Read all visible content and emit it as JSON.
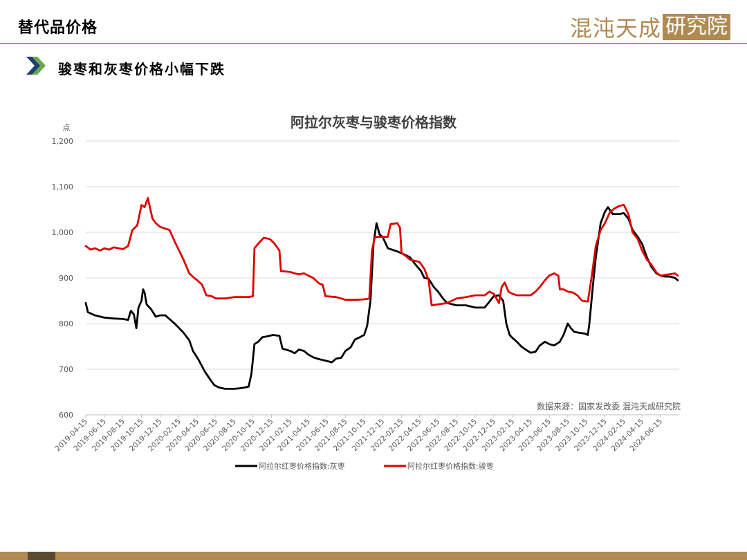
{
  "header": {
    "page_title": "替代品价格",
    "logo_text": "混沌天成",
    "logo_box_text": "研究院"
  },
  "section": {
    "title": "骏枣和灰枣价格小幅下跌",
    "icon": "double-chevron-right-icon"
  },
  "colors": {
    "accent": "#b08a52",
    "series_grey": "#000000",
    "series_red": "#e00000",
    "chevron_blue": "#1f3f6e",
    "chevron_green": "#6aa84f"
  },
  "chart_data": {
    "type": "line",
    "title": "阿拉尔灰枣与骏枣价格指数",
    "ylabel": "点",
    "ylim": [
      600,
      1200
    ],
    "yticks": [
      "600",
      "700",
      "800",
      "900",
      "1,000",
      "1,100",
      "1,200"
    ],
    "xlim": [
      "2019-04-15",
      "2024-08-15"
    ],
    "xticks": [
      "2019-04-15",
      "2019-06-15",
      "2019-08-15",
      "2019-10-15",
      "2019-12-15",
      "2020-02-15",
      "2020-04-15",
      "2020-06-15",
      "2020-08-15",
      "2020-10-15",
      "2020-12-15",
      "2021-02-15",
      "2021-04-15",
      "2021-06-15",
      "2021-08-15",
      "2021-10-15",
      "2021-12-15",
      "2022-02-15",
      "2022-04-15",
      "2022-06-15",
      "2022-08-15",
      "2022-10-15",
      "2022-12-15",
      "2023-02-15",
      "2023-04-15",
      "2023-06-15",
      "2023-08-15",
      "2023-10-15",
      "2023-12-15",
      "2024-02-15",
      "2024-04-15",
      "2024-06-15"
    ],
    "grid": true,
    "legend": "bottom",
    "source": "数据来源：国家发改委   混沌天成研究院",
    "series": [
      {
        "name": "阿拉尔红枣价格指数:灰枣",
        "color": "#000000",
        "points": [
          [
            "2019-04-15",
            845
          ],
          [
            "2019-04-22",
            825
          ],
          [
            "2019-05-15",
            818
          ],
          [
            "2019-06-15",
            813
          ],
          [
            "2019-07-15",
            811
          ],
          [
            "2019-08-15",
            810
          ],
          [
            "2019-09-01",
            808
          ],
          [
            "2019-09-10",
            828
          ],
          [
            "2019-09-20",
            820
          ],
          [
            "2019-09-28",
            790
          ],
          [
            "2019-10-05",
            835
          ],
          [
            "2019-10-15",
            850
          ],
          [
            "2019-10-20",
            875
          ],
          [
            "2019-10-25",
            868
          ],
          [
            "2019-11-01",
            842
          ],
          [
            "2019-11-15",
            832
          ],
          [
            "2019-12-01",
            815
          ],
          [
            "2019-12-15",
            818
          ],
          [
            "2020-01-01",
            818
          ],
          [
            "2020-02-01",
            800
          ],
          [
            "2020-03-01",
            780
          ],
          [
            "2020-03-20",
            763
          ],
          [
            "2020-04-01",
            740
          ],
          [
            "2020-04-20",
            720
          ],
          [
            "2020-05-10",
            695
          ],
          [
            "2020-05-25",
            680
          ],
          [
            "2020-06-10",
            665
          ],
          [
            "2020-06-25",
            660
          ],
          [
            "2020-07-15",
            657
          ],
          [
            "2020-08-15",
            657
          ],
          [
            "2020-09-01",
            658
          ],
          [
            "2020-09-20",
            660
          ],
          [
            "2020-10-01",
            662
          ],
          [
            "2020-10-10",
            690
          ],
          [
            "2020-10-20",
            755
          ],
          [
            "2020-11-01",
            760
          ],
          [
            "2020-11-15",
            770
          ],
          [
            "2020-12-01",
            772
          ],
          [
            "2020-12-20",
            775
          ],
          [
            "2021-01-10",
            773
          ],
          [
            "2021-01-20",
            745
          ],
          [
            "2021-02-15",
            740
          ],
          [
            "2021-03-01",
            735
          ],
          [
            "2021-03-15",
            743
          ],
          [
            "2021-04-01",
            740
          ],
          [
            "2021-04-15",
            732
          ],
          [
            "2021-05-01",
            726
          ],
          [
            "2021-05-20",
            722
          ],
          [
            "2021-06-15",
            718
          ],
          [
            "2021-07-01",
            715
          ],
          [
            "2021-07-15",
            723
          ],
          [
            "2021-08-01",
            725
          ],
          [
            "2021-08-15",
            740
          ],
          [
            "2021-09-01",
            748
          ],
          [
            "2021-09-15",
            765
          ],
          [
            "2021-10-01",
            770
          ],
          [
            "2021-10-15",
            775
          ],
          [
            "2021-10-25",
            795
          ],
          [
            "2021-11-05",
            850
          ],
          [
            "2021-11-15",
            975
          ],
          [
            "2021-11-25",
            1020
          ],
          [
            "2021-12-05",
            995
          ],
          [
            "2021-12-15",
            990
          ],
          [
            "2022-01-01",
            965
          ],
          [
            "2022-02-01",
            958
          ],
          [
            "2022-03-01",
            950
          ],
          [
            "2022-03-15",
            945
          ],
          [
            "2022-04-01",
            930
          ],
          [
            "2022-04-20",
            915
          ],
          [
            "2022-05-01",
            900
          ],
          [
            "2022-05-15",
            898
          ],
          [
            "2022-06-01",
            880
          ],
          [
            "2022-06-15",
            870
          ],
          [
            "2022-07-01",
            855
          ],
          [
            "2022-07-15",
            845
          ],
          [
            "2022-08-15",
            840
          ],
          [
            "2022-09-15",
            840
          ],
          [
            "2022-10-15",
            835
          ],
          [
            "2022-11-15",
            835
          ],
          [
            "2022-12-01",
            848
          ],
          [
            "2022-12-15",
            860
          ],
          [
            "2023-01-01",
            862
          ],
          [
            "2023-01-15",
            850
          ],
          [
            "2023-01-25",
            800
          ],
          [
            "2023-02-05",
            775
          ],
          [
            "2023-02-15",
            768
          ],
          [
            "2023-03-01",
            760
          ],
          [
            "2023-03-15",
            750
          ],
          [
            "2023-04-01",
            742
          ],
          [
            "2023-04-15",
            736
          ],
          [
            "2023-05-01",
            738
          ],
          [
            "2023-05-15",
            752
          ],
          [
            "2023-06-01",
            760
          ],
          [
            "2023-06-15",
            755
          ],
          [
            "2023-07-01",
            752
          ],
          [
            "2023-07-20",
            760
          ],
          [
            "2023-08-01",
            775
          ],
          [
            "2023-08-15",
            800
          ],
          [
            "2023-08-25",
            790
          ],
          [
            "2023-09-05",
            782
          ],
          [
            "2023-09-20",
            780
          ],
          [
            "2023-10-10",
            778
          ],
          [
            "2023-10-20",
            775
          ],
          [
            "2023-10-25",
            800
          ],
          [
            "2023-11-05",
            880
          ],
          [
            "2023-11-15",
            945
          ],
          [
            "2023-12-01",
            1020
          ],
          [
            "2023-12-15",
            1045
          ],
          [
            "2023-12-25",
            1055
          ],
          [
            "2024-01-10",
            1040
          ],
          [
            "2024-02-01",
            1040
          ],
          [
            "2024-02-15",
            1042
          ],
          [
            "2024-03-01",
            1030
          ],
          [
            "2024-03-15",
            1005
          ],
          [
            "2024-04-01",
            990
          ],
          [
            "2024-04-15",
            975
          ],
          [
            "2024-05-01",
            945
          ],
          [
            "2024-05-15",
            925
          ],
          [
            "2024-06-01",
            910
          ],
          [
            "2024-06-15",
            905
          ],
          [
            "2024-07-01",
            903
          ],
          [
            "2024-07-15",
            903
          ],
          [
            "2024-08-01",
            900
          ],
          [
            "2024-08-10",
            895
          ]
        ]
      },
      {
        "name": "阿拉尔红枣价格指数:骏枣",
        "color": "#e00000",
        "points": [
          [
            "2019-04-15",
            970
          ],
          [
            "2019-05-01",
            962
          ],
          [
            "2019-05-15",
            965
          ],
          [
            "2019-06-01",
            960
          ],
          [
            "2019-06-15",
            965
          ],
          [
            "2019-07-01",
            962
          ],
          [
            "2019-07-15",
            967
          ],
          [
            "2019-08-01",
            965
          ],
          [
            "2019-08-15",
            963
          ],
          [
            "2019-09-01",
            970
          ],
          [
            "2019-09-15",
            1005
          ],
          [
            "2019-10-01",
            1015
          ],
          [
            "2019-10-15",
            1060
          ],
          [
            "2019-10-25",
            1055
          ],
          [
            "2019-11-05",
            1075
          ],
          [
            "2019-11-10",
            1060
          ],
          [
            "2019-11-20",
            1030
          ],
          [
            "2019-12-01",
            1020
          ],
          [
            "2019-12-15",
            1012
          ],
          [
            "2020-01-01",
            1008
          ],
          [
            "2020-01-15",
            1005
          ],
          [
            "2020-02-01",
            980
          ],
          [
            "2020-03-01",
            940
          ],
          [
            "2020-03-20",
            910
          ],
          [
            "2020-04-05",
            900
          ],
          [
            "2020-04-15",
            895
          ],
          [
            "2020-05-01",
            885
          ],
          [
            "2020-05-15",
            862
          ],
          [
            "2020-06-01",
            860
          ],
          [
            "2020-06-15",
            855
          ],
          [
            "2020-07-15",
            855
          ],
          [
            "2020-08-15",
            858
          ],
          [
            "2020-09-15",
            858
          ],
          [
            "2020-10-01",
            858
          ],
          [
            "2020-10-15",
            860
          ],
          [
            "2020-10-20",
            965
          ],
          [
            "2020-11-01",
            975
          ],
          [
            "2020-11-20",
            988
          ],
          [
            "2020-12-10",
            985
          ],
          [
            "2020-12-25",
            975
          ],
          [
            "2021-01-10",
            960
          ],
          [
            "2021-01-15",
            915
          ],
          [
            "2021-02-15",
            913
          ],
          [
            "2021-03-01",
            910
          ],
          [
            "2021-03-15",
            908
          ],
          [
            "2021-04-01",
            910
          ],
          [
            "2021-04-15",
            905
          ],
          [
            "2021-05-01",
            900
          ],
          [
            "2021-05-20",
            888
          ],
          [
            "2021-06-01",
            885
          ],
          [
            "2021-06-10",
            860
          ],
          [
            "2021-07-15",
            858
          ],
          [
            "2021-08-01",
            855
          ],
          [
            "2021-08-15",
            852
          ],
          [
            "2021-09-15",
            852
          ],
          [
            "2021-10-15",
            853
          ],
          [
            "2021-11-01",
            855
          ],
          [
            "2021-11-10",
            960
          ],
          [
            "2021-11-20",
            990
          ],
          [
            "2021-12-15",
            990
          ],
          [
            "2022-01-01",
            990
          ],
          [
            "2022-01-10",
            1018
          ],
          [
            "2022-02-01",
            1020
          ],
          [
            "2022-02-10",
            1010
          ],
          [
            "2022-02-15",
            955
          ],
          [
            "2022-03-01",
            948
          ],
          [
            "2022-03-15",
            940
          ],
          [
            "2022-04-15",
            935
          ],
          [
            "2022-05-01",
            920
          ],
          [
            "2022-05-15",
            895
          ],
          [
            "2022-05-25",
            840
          ],
          [
            "2022-06-15",
            842
          ],
          [
            "2022-07-15",
            845
          ],
          [
            "2022-08-15",
            855
          ],
          [
            "2022-09-15",
            858
          ],
          [
            "2022-10-15",
            862
          ],
          [
            "2022-11-15",
            862
          ],
          [
            "2022-12-01",
            870
          ],
          [
            "2022-12-15",
            865
          ],
          [
            "2023-01-01",
            845
          ],
          [
            "2023-01-10",
            880
          ],
          [
            "2023-01-20",
            890
          ],
          [
            "2023-02-01",
            870
          ],
          [
            "2023-02-15",
            865
          ],
          [
            "2023-03-01",
            862
          ],
          [
            "2023-04-01",
            862
          ],
          [
            "2023-04-15",
            862
          ],
          [
            "2023-05-01",
            870
          ],
          [
            "2023-05-15",
            880
          ],
          [
            "2023-06-01",
            895
          ],
          [
            "2023-06-15",
            905
          ],
          [
            "2023-07-01",
            910
          ],
          [
            "2023-07-15",
            905
          ],
          [
            "2023-07-20",
            875
          ],
          [
            "2023-08-01",
            875
          ],
          [
            "2023-08-15",
            870
          ],
          [
            "2023-09-01",
            868
          ],
          [
            "2023-09-15",
            862
          ],
          [
            "2023-10-01",
            850
          ],
          [
            "2023-10-20",
            848
          ],
          [
            "2023-11-01",
            900
          ],
          [
            "2023-11-15",
            970
          ],
          [
            "2023-12-01",
            1005
          ],
          [
            "2023-12-15",
            1020
          ],
          [
            "2024-01-01",
            1045
          ],
          [
            "2024-01-15",
            1052
          ],
          [
            "2024-02-01",
            1058
          ],
          [
            "2024-02-15",
            1060
          ],
          [
            "2024-03-01",
            1040
          ],
          [
            "2024-03-15",
            1000
          ],
          [
            "2024-04-01",
            985
          ],
          [
            "2024-04-15",
            960
          ],
          [
            "2024-05-01",
            940
          ],
          [
            "2024-05-15",
            930
          ],
          [
            "2024-06-01",
            912
          ],
          [
            "2024-06-15",
            905
          ],
          [
            "2024-07-01",
            907
          ],
          [
            "2024-07-15",
            908
          ],
          [
            "2024-08-01",
            910
          ],
          [
            "2024-08-10",
            905
          ]
        ]
      }
    ]
  }
}
